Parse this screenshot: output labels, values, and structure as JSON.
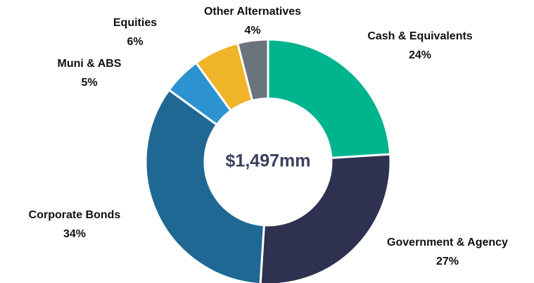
{
  "chart_data": {
    "type": "donut",
    "center_label": "$1,497mm",
    "categories": [
      "Cash & Equivalents",
      "Government & Agency",
      "Corporate Bonds",
      "Muni & ABS",
      "Equities",
      "Other Alternatives"
    ],
    "values": [
      24,
      27,
      34,
      5,
      6,
      4
    ],
    "value_labels": [
      "24%",
      "27%",
      "34%",
      "5%",
      "6%",
      "4%"
    ],
    "colors": [
      "#00b48e",
      "#2e3150",
      "#1f6893",
      "#2d93d0",
      "#f0b429",
      "#6b737c"
    ]
  }
}
